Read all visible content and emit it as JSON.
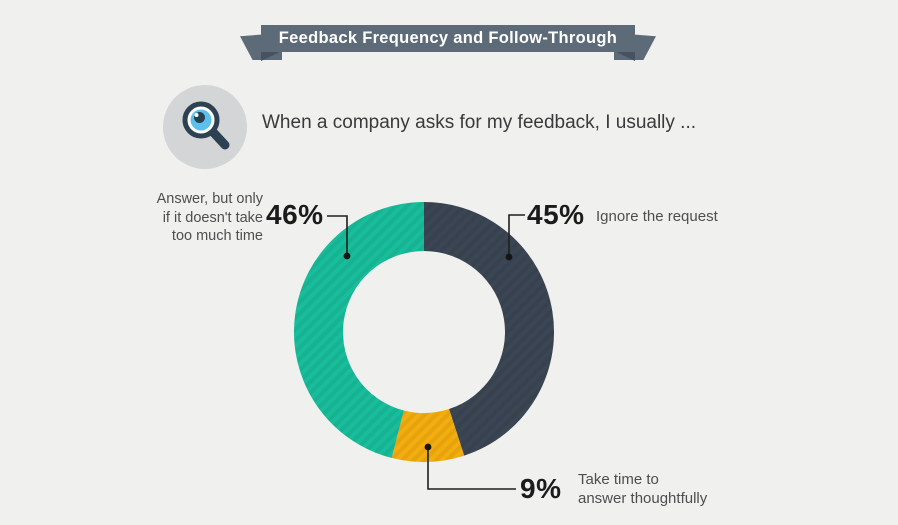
{
  "banner": {
    "title": "Feedback Frequency and Follow-Through"
  },
  "question": {
    "text": "When a company asks for my feedback, I usually ...",
    "icon": "magnifier-eye-icon"
  },
  "chart_data": {
    "type": "pie",
    "donut": true,
    "title": "When a company asks for my feedback, I usually ...",
    "direction": "clockwise",
    "start_angle_deg": 0,
    "inner_radius_ratio": 0.62,
    "segments": [
      {
        "label": "Ignore the request",
        "value": 45,
        "pct_label": "45%",
        "color": "#3a4653"
      },
      {
        "label": "Take time to answer thoughtfully",
        "value": 9,
        "pct_label": "9%",
        "color": "#f4ad0e"
      },
      {
        "label": "Answer, but only if it doesn't take too much time",
        "value": 46,
        "pct_label": "46%",
        "color": "#18bd9b"
      }
    ]
  },
  "callouts": {
    "left": {
      "pct": "46%",
      "lines": [
        "Answer, but only",
        "if it doesn't take",
        "too much time"
      ]
    },
    "right": {
      "pct": "45%",
      "label": "Ignore the request"
    },
    "bottom": {
      "pct": "9%",
      "lines": [
        "Take time to",
        "answer thoughtfully"
      ]
    }
  },
  "colors": {
    "background": "#f0f0ee",
    "ribbon": "#5d6b78",
    "ribbon_fold": "#46535e",
    "icon_circle": "#d4d5d6",
    "teal": "#18bd9b",
    "slate": "#3a4653",
    "amber": "#f4ad0e",
    "text_dark": "#1b1b1b",
    "text_gray": "#4e4e4e",
    "title_text": "#ffffff"
  }
}
